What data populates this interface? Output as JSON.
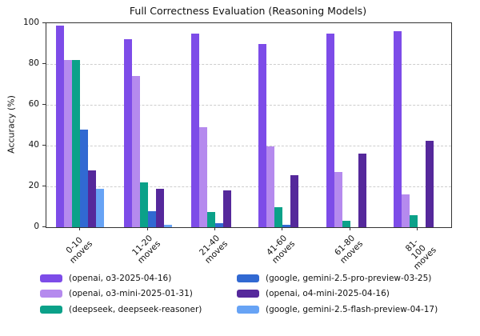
{
  "figure": {
    "title": "Full Correctness Evaluation (Reasoning Models)",
    "ylabel": "Accuracy (%)"
  },
  "chart_data": {
    "type": "bar",
    "title": "Full Correctness Evaluation (Reasoning Models)",
    "xlabel": "",
    "ylabel": "Accuracy (%)",
    "ylim": [
      0,
      100
    ],
    "yticks": [
      0,
      20,
      40,
      60,
      80,
      100
    ],
    "grid": {
      "axis": "y",
      "style": "dashed",
      "color": "#cdcdcd"
    },
    "legend": {
      "position": "bottom",
      "columns": 2,
      "frame": false
    },
    "categories": [
      "0-10\nmoves",
      "11-20\nmoves",
      "21-40\nmoves",
      "41-60\nmoves",
      "61-80\nmoves",
      "81-100\nmoves"
    ],
    "series": [
      {
        "name": "(openai, o3-2025-04-16)",
        "color": "#7d4ce8",
        "values": [
          99,
          92,
          95,
          90,
          95,
          96
        ]
      },
      {
        "name": "(openai, o3-mini-2025-01-31)",
        "color": "#b58aee",
        "values": [
          82,
          74,
          49,
          39.5,
          27,
          16
        ]
      },
      {
        "name": "(deepseek, deepseek-reasoner)",
        "color": "#0ba189",
        "values": [
          82,
          22,
          7.5,
          10,
          3,
          6
        ]
      },
      {
        "name": "(google, gemini-2.5-pro-preview-03-25)",
        "color": "#3169d2",
        "values": [
          48,
          8,
          2,
          1,
          0,
          0
        ]
      },
      {
        "name": "(openai, o4-mini-2025-04-16)",
        "color": "#55289b",
        "values": [
          28,
          19,
          18,
          25.5,
          36,
          42.5
        ]
      },
      {
        "name": "(google, gemini-2.5-flash-preview-04-17)",
        "color": "#67a3f5",
        "values": [
          19,
          1,
          0,
          0,
          0,
          0
        ]
      }
    ]
  }
}
